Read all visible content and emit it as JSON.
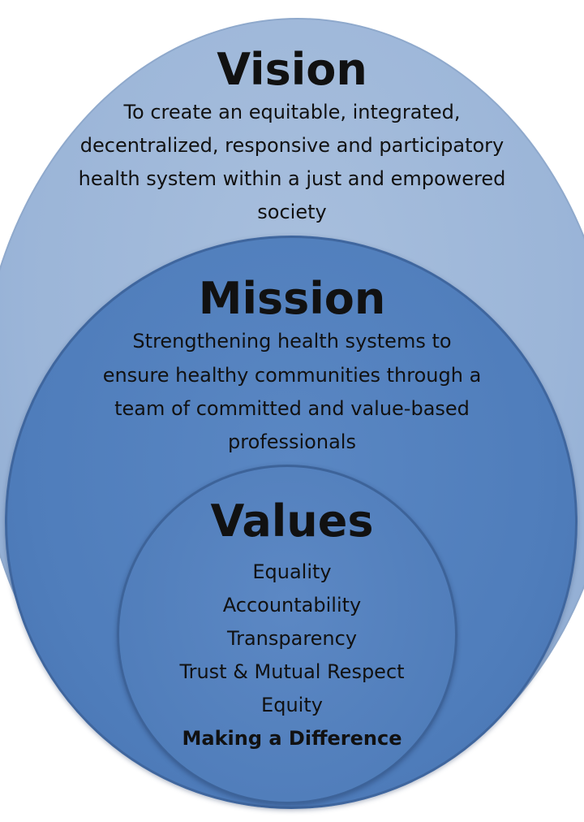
{
  "vision": {
    "title": "Vision",
    "lines": [
      "To create an equitable, integrated,",
      "decentralized, responsive and participatory",
      "health system within a just and empowered",
      "society"
    ]
  },
  "mission": {
    "title": "Mission",
    "lines": [
      "Strengthening health systems to",
      "ensure healthy communities through a",
      "team of committed and value-based",
      "professionals"
    ]
  },
  "values": {
    "title": "Values",
    "items": [
      "Equality",
      "Accountability",
      "Transparency",
      "Trust & Mutual Respect",
      "Equity",
      "Making a Difference"
    ]
  },
  "colors": {
    "vision_circle": "#9bb5d8",
    "mission_circle": "#4f7dbb",
    "values_circle": "#517ebb"
  }
}
